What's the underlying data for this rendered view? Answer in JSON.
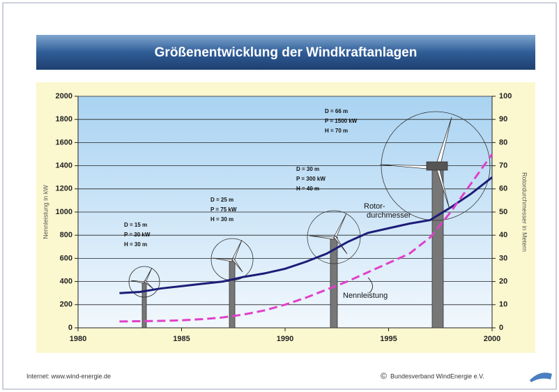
{
  "chart_data": {
    "type": "line",
    "title": "Größenentwicklung der Windkraftanlagen",
    "ylabel": "Nennleistung in kW",
    "y2label": "Rotordurchmesser in Metern",
    "x": [
      1982,
      1983,
      1984,
      1985,
      1986,
      1987,
      1988,
      1989,
      1990,
      1991,
      1992,
      1993,
      1994,
      1995,
      1996,
      1997,
      1998,
      1999,
      2000
    ],
    "xlim": [
      1980,
      2000
    ],
    "xticks": [
      1980,
      1985,
      1990,
      1995,
      2000
    ],
    "ylim": [
      0,
      2000
    ],
    "yticks": [
      0,
      200,
      400,
      600,
      800,
      1000,
      1200,
      1400,
      1600,
      1800,
      2000
    ],
    "y2lim": [
      0,
      100
    ],
    "y2ticks": [
      0,
      10,
      20,
      30,
      40,
      50,
      60,
      70,
      80,
      90,
      100
    ],
    "grid": true,
    "series": [
      {
        "label": [
          "Rotor-",
          "durchmesser"
        ],
        "color": "#1c1c78",
        "axis": "y2",
        "dashed": false,
        "values": [
          15,
          15.5,
          17,
          18,
          19,
          20,
          22,
          23.5,
          25.5,
          28.5,
          32,
          37,
          41,
          43,
          45,
          46.5,
          52,
          58,
          65
        ]
      },
      {
        "label": [
          "Nennleistung"
        ],
        "color": "#e040c8",
        "dashed": true,
        "values": [
          55,
          57,
          60,
          65,
          75,
          90,
          115,
          150,
          200,
          260,
          330,
          400,
          480,
          560,
          640,
          780,
          1000,
          1250,
          1500
        ]
      }
    ],
    "annotations": [
      [
        "D = 15 m",
        "P = 30 kW",
        "H = 30 m"
      ],
      [
        "D = 25 m",
        "P = 75 kW",
        "H = 30 m"
      ],
      [
        "D = 30 m",
        "P = 300 kW",
        "H = 40 m"
      ],
      [
        "D = 66 m",
        "P = 1500 kW",
        "H = 70 m"
      ]
    ]
  },
  "footer": {
    "left": "Internet: www.wind-energie.de",
    "right": "Bundesverband WindEnergie e.V."
  }
}
